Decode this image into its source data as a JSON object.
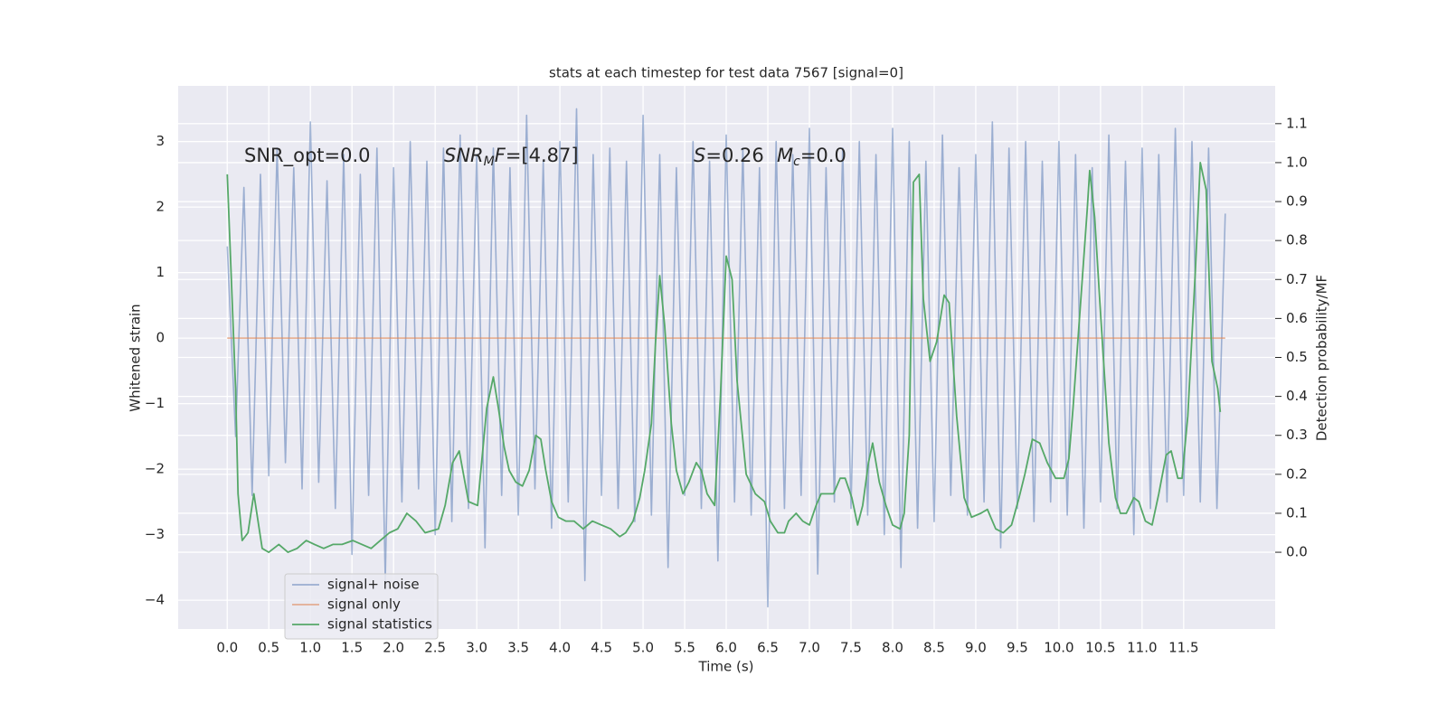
{
  "chart_data": {
    "type": "line",
    "title": "stats at each timestep for test data 7567 [signal=0]",
    "xlabel": "Time (s)",
    "ylabel": "Whitened strain",
    "y2label": "Detection probability/MF",
    "xlim": [
      -0.59,
      12.6
    ],
    "ylim": [
      -4.44,
      3.85
    ],
    "y2lim": [
      -0.197,
      1.197
    ],
    "xticks": [
      {
        "value": 0,
        "label": "0.0"
      },
      0.5,
      {
        "value": 1,
        "label": "1.0"
      },
      1.5,
      {
        "value": 2,
        "label": "2.0"
      },
      2.5,
      {
        "value": 3,
        "label": "3.0"
      },
      3.5,
      {
        "value": 4,
        "label": "4.0"
      },
      4.5,
      {
        "value": 5,
        "label": "5.0"
      },
      5.5,
      {
        "value": 6,
        "label": "6.0"
      },
      6.5,
      {
        "value": 7,
        "label": "7.0"
      },
      7.5,
      {
        "value": 8,
        "label": "8.0"
      },
      8.5,
      {
        "value": 9,
        "label": "9.0"
      },
      9.5,
      {
        "value": 10,
        "label": "10.0"
      },
      10.5,
      {
        "value": 11,
        "label": "11.0"
      },
      11.5
    ],
    "yticks": [
      {
        "value": -4,
        "label": "−4"
      },
      {
        "value": -3,
        "label": "−3"
      },
      {
        "value": -2,
        "label": "−2"
      },
      {
        "value": -1,
        "label": "−1"
      },
      0,
      1,
      2,
      3
    ],
    "y2ticks": [
      {
        "value": 0,
        "label": "0.0"
      },
      0.1,
      0.2,
      0.3,
      0.4,
      0.5,
      0.6,
      0.7,
      0.8,
      0.9,
      {
        "value": 1,
        "label": "1.0"
      },
      1.1
    ],
    "grid": true,
    "legend": "lower left",
    "annotations": [
      [
        {
          "text": "SNR_opt=0.0",
          "style": "normal"
        }
      ],
      [
        {
          "text": "SNR",
          "style": "italic"
        },
        {
          "text": "M",
          "style": "sub"
        },
        {
          "text": "F",
          "style": "italic"
        },
        {
          "text": "=[4.87]",
          "style": "normal"
        }
      ],
      [
        {
          "text": "S",
          "style": "italic"
        },
        {
          "text": "=0.26",
          "style": "normal"
        }
      ],
      [
        {
          "text": "M",
          "style": "italic"
        },
        {
          "text": "c",
          "style": "sub"
        },
        {
          "text": "=0.0",
          "style": "normal"
        }
      ]
    ],
    "series": [
      {
        "name": "signal+ noise",
        "color": "#4c72b0",
        "opacity": 0.5,
        "x": [
          0,
          0.1,
          0.2,
          0.3,
          0.4,
          0.5,
          0.6,
          0.7,
          0.8,
          0.9,
          1,
          1.1,
          1.2,
          1.3,
          1.4,
          1.5,
          1.6,
          1.7,
          1.8,
          1.9,
          2,
          2.1,
          2.2,
          2.3,
          2.4,
          2.5,
          2.6,
          2.7,
          2.8,
          2.9,
          3,
          3.1,
          3.2,
          3.3,
          3.4,
          3.5,
          3.6,
          3.7,
          3.8,
          3.9,
          4,
          4.1,
          4.2,
          4.3,
          4.4,
          4.5,
          4.6,
          4.7,
          4.8,
          4.9,
          5,
          5.1,
          5.2,
          5.3,
          5.4,
          5.5,
          5.6,
          5.7,
          5.8,
          5.9,
          6,
          6.1,
          6.2,
          6.3,
          6.4,
          6.5,
          6.6,
          6.7,
          6.8,
          6.9,
          7,
          7.1,
          7.2,
          7.3,
          7.4,
          7.5,
          7.6,
          7.7,
          7.8,
          7.9,
          8,
          8.1,
          8.2,
          8.3,
          8.4,
          8.5,
          8.6,
          8.7,
          8.8,
          8.9,
          9,
          9.1,
          9.2,
          9.3,
          9.4,
          9.5,
          9.6,
          9.7,
          9.8,
          9.9,
          10,
          10.1,
          10.2,
          10.3,
          10.4,
          10.5,
          10.6,
          10.7,
          10.8,
          10.9,
          11,
          11.1,
          11.2,
          11.3,
          11.4,
          11.5,
          11.6,
          11.7,
          11.8,
          11.9,
          12
        ],
        "values": [
          1.4,
          -1.5,
          2.3,
          -2.4,
          2.5,
          -2.1,
          2.9,
          -1.9,
          2.6,
          -2.3,
          3.3,
          -2.2,
          2.4,
          -2.6,
          2.8,
          -3.3,
          2.5,
          -2.4,
          2.9,
          -3.7,
          2.6,
          -2.5,
          3.0,
          -2.3,
          2.7,
          -3.0,
          2.9,
          -2.8,
          3.1,
          -2.6,
          2.8,
          -3.2,
          2.9,
          -2.4,
          2.6,
          -2.7,
          3.4,
          -2.3,
          2.7,
          -2.9,
          3.0,
          -2.5,
          3.5,
          -3.7,
          2.8,
          -2.4,
          2.9,
          -2.6,
          2.7,
          -2.8,
          3.4,
          -2.7,
          2.8,
          -3.5,
          2.6,
          -2.4,
          3.0,
          -2.6,
          2.7,
          -3.4,
          3.1,
          -2.5,
          2.9,
          -2.7,
          2.6,
          -4.1,
          3.0,
          -2.6,
          2.8,
          -2.4,
          3.2,
          -3.6,
          2.6,
          -2.5,
          2.9,
          -2.6,
          3.0,
          -2.7,
          2.8,
          -3.0,
          3.2,
          -3.5,
          3.0,
          -2.9,
          2.7,
          -2.8,
          3.1,
          -2.4,
          2.6,
          -2.7,
          2.8,
          -2.5,
          3.3,
          -3.2,
          2.9,
          -2.6,
          3.0,
          -2.8,
          2.7,
          -2.5,
          3.0,
          -2.7,
          2.8,
          -2.9,
          2.6,
          -2.5,
          3.1,
          -2.6,
          2.7,
          -3.0,
          2.9,
          -2.6,
          2.8,
          -2.5,
          3.2,
          -2.4,
          3.0,
          -2.5,
          2.9,
          -2.6,
          1.9
        ]
      },
      {
        "name": "signal only",
        "color": "#dd8452",
        "opacity": 0.6,
        "x": [
          0,
          12
        ],
        "values": [
          0,
          0
        ]
      },
      {
        "name": "signal statistics",
        "color": "#55a868",
        "opacity": 1,
        "axis": "y2",
        "x": [
          0,
          0.1,
          0.13,
          0.18,
          0.25,
          0.32,
          0.42,
          0.5,
          0.62,
          0.73,
          0.84,
          0.95,
          1.05,
          1.16,
          1.27,
          1.38,
          1.51,
          1.62,
          1.73,
          1.84,
          1.95,
          2.05,
          2.16,
          2.27,
          2.38,
          2.54,
          2.62,
          2.71,
          2.79,
          2.9,
          3.01,
          3.12,
          3.2,
          3.26,
          3.33,
          3.39,
          3.47,
          3.55,
          3.63,
          3.71,
          3.77,
          3.83,
          3.9,
          3.98,
          4.07,
          4.17,
          4.28,
          4.39,
          4.5,
          4.61,
          4.72,
          4.79,
          4.88,
          4.96,
          5.02,
          5.1,
          5.15,
          5.2,
          5.26,
          5.34,
          5.4,
          5.48,
          5.55,
          5.64,
          5.7,
          5.77,
          5.86,
          5.93,
          6,
          6.07,
          6.13,
          6.24,
          6.35,
          6.46,
          6.53,
          6.62,
          6.7,
          6.75,
          6.84,
          6.92,
          7,
          7.08,
          7.14,
          7.22,
          7.29,
          7.37,
          7.43,
          7.51,
          7.58,
          7.64,
          7.71,
          7.76,
          7.84,
          7.92,
          8,
          8.09,
          8.14,
          8.2,
          8.25,
          8.32,
          8.37,
          8.45,
          8.53,
          8.62,
          8.68,
          8.77,
          8.86,
          8.95,
          9.06,
          9.14,
          9.24,
          9.33,
          9.43,
          9.52,
          9.59,
          9.68,
          9.77,
          9.86,
          9.96,
          10.06,
          10.12,
          10.17,
          10.24,
          10.34,
          10.37,
          10.43,
          10.51,
          10.6,
          10.68,
          10.74,
          10.81,
          10.9,
          10.96,
          11.04,
          11.12,
          11.2,
          11.29,
          11.35,
          11.43,
          11.48,
          11.55,
          11.64,
          11.7,
          11.77,
          11.84,
          11.91,
          11.94
        ],
        "values": [
          0.97,
          0.42,
          0.15,
          0.03,
          0.05,
          0.15,
          0.01,
          0,
          0.02,
          0,
          0.01,
          0.03,
          0.02,
          0.01,
          0.02,
          0.02,
          0.03,
          0.02,
          0.01,
          0.03,
          0.05,
          0.06,
          0.1,
          0.08,
          0.05,
          0.06,
          0.12,
          0.23,
          0.26,
          0.13,
          0.12,
          0.37,
          0.45,
          0.37,
          0.27,
          0.21,
          0.18,
          0.17,
          0.21,
          0.3,
          0.29,
          0.21,
          0.13,
          0.09,
          0.08,
          0.08,
          0.06,
          0.08,
          0.07,
          0.06,
          0.04,
          0.05,
          0.08,
          0.14,
          0.21,
          0.33,
          0.54,
          0.71,
          0.58,
          0.33,
          0.21,
          0.15,
          0.18,
          0.23,
          0.21,
          0.15,
          0.12,
          0.4,
          0.76,
          0.7,
          0.44,
          0.2,
          0.15,
          0.13,
          0.08,
          0.05,
          0.05,
          0.08,
          0.1,
          0.08,
          0.07,
          0.12,
          0.15,
          0.15,
          0.15,
          0.19,
          0.19,
          0.14,
          0.07,
          0.12,
          0.23,
          0.28,
          0.18,
          0.12,
          0.07,
          0.06,
          0.1,
          0.3,
          0.95,
          0.97,
          0.65,
          0.49,
          0.54,
          0.66,
          0.64,
          0.35,
          0.14,
          0.09,
          0.1,
          0.11,
          0.06,
          0.05,
          0.07,
          0.14,
          0.2,
          0.29,
          0.28,
          0.23,
          0.19,
          0.19,
          0.24,
          0.37,
          0.58,
          0.88,
          0.98,
          0.86,
          0.58,
          0.28,
          0.14,
          0.1,
          0.1,
          0.14,
          0.13,
          0.08,
          0.07,
          0.15,
          0.25,
          0.26,
          0.19,
          0.19,
          0.35,
          0.72,
          1.0,
          0.93,
          0.49,
          0.42,
          0.36
        ]
      }
    ]
  }
}
